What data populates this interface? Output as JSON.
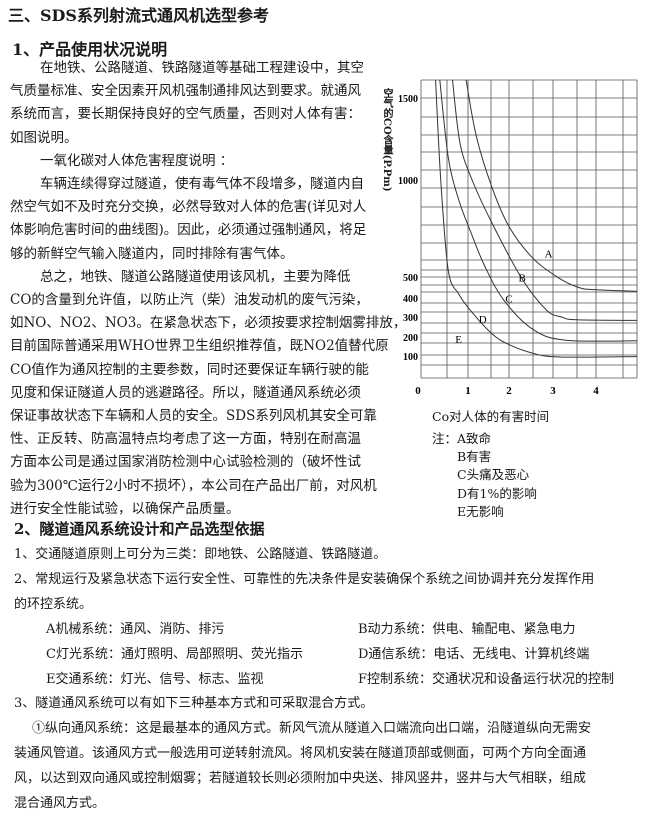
{
  "heading": "三、SDS系列射流式通风机选型参考",
  "section1": {
    "title": "1、产品使用状况说明",
    "lines": [
      "在地铁、公路隧道、铁路隧道等基础工程建设中，其空",
      "气质量标准、安全因素开风机强制通排风达到要求。就通风",
      "系统而言，要长期保持良好的空气质量，否则对人体有害：",
      "如图说明。",
      "一氧化碳对人体危害程度说明 ：",
      "车辆连续得穿过隧道，使有毒气体不段增多，隧道内自",
      "然空气如不及时充分交换，必然导致对人体的危害(详见对人",
      "体影响危害时间的曲线图)。因此，必须通过强制通风，将足",
      "够的新鲜空气输入隧道内，同时排除有害气体。",
      "总之，地铁、隧道公路隧道使用该风机，主要为降低",
      "CO的含量到允许值，以防止汽（柴）油发动机的废气污染，",
      "如NO、NO2、NO3。在紧急状态下，必须按要求控制烟雾排放，",
      "目前国际普通采用WHO世界卫生组织推荐值，既NO2值替代原",
      "CO值作为通风控制的主要参数，同时还要保证车辆行驶的能",
      "见度和保证隧道人员的逃避路径。所以，隧道通风系统必须",
      "保证事故状态下车辆和人员的安全。SDS系列风机其安全可靠",
      "性、正反转、防高温特点均考虑了这一方面，特别在耐高温",
      "方面本公司是通过国家消防检测中心试验检测的（破坏性试",
      "验为300℃运行2小时不损坏），本公司在产品出厂前，对风机",
      "进行安全性能试验，以确保产品质量。"
    ]
  },
  "chart_data": {
    "type": "line",
    "ylabel": "空气的CO含量(P.Pm)",
    "xlabel": "Co对人体的有害时间",
    "x_ticks": [
      "0",
      "1",
      "2",
      "3",
      "4"
    ],
    "y_ticks": [
      "100",
      "200",
      "300",
      "400",
      "500",
      "1000",
      "1500"
    ],
    "xlim": [
      0,
      4.9
    ],
    "ylim": [
      0,
      1610
    ],
    "grid": true,
    "series": [
      {
        "name": "A",
        "points": [
          [
            0.96,
            1610
          ],
          [
            1.2,
            1270
          ],
          [
            1.58,
            965
          ],
          [
            2.0,
            760
          ],
          [
            2.55,
            595
          ],
          [
            3.16,
            492
          ],
          [
            3.6,
            450
          ],
          [
            3.94,
            440
          ],
          [
            4.9,
            432
          ]
        ]
      },
      {
        "name": "B",
        "points": [
          [
            0.67,
            1610
          ],
          [
            0.83,
            1224
          ],
          [
            1.1,
            1000
          ],
          [
            1.55,
            793
          ],
          [
            2.27,
            500
          ],
          [
            2.85,
            337
          ],
          [
            3.2,
            300
          ],
          [
            3.55,
            286
          ],
          [
            4.9,
            283
          ]
        ]
      },
      {
        "name": "C",
        "points": [
          [
            0.4,
            1610
          ],
          [
            0.58,
            1138
          ],
          [
            0.8,
            900
          ],
          [
            1.05,
            741
          ],
          [
            1.4,
            560
          ],
          [
            1.87,
            390
          ],
          [
            2.55,
            237
          ],
          [
            3.3,
            183
          ],
          [
            4.9,
            180
          ]
        ]
      },
      {
        "name": "D",
        "points": [
          [
            0.31,
            1610
          ],
          [
            0.42,
            1000
          ],
          [
            0.58,
            534
          ],
          [
            0.8,
            420
          ],
          [
            1.05,
            337
          ],
          [
            1.58,
            217
          ],
          [
            2.0,
            160
          ],
          [
            2.55,
            114
          ],
          [
            3.16,
            95
          ],
          [
            4.9,
            97
          ]
        ]
      }
    ],
    "region_labels": [
      {
        "text": "A",
        "x": 2.9,
        "y": 620
      },
      {
        "text": "B",
        "x": 2.3,
        "y": 497
      },
      {
        "text": "C",
        "x": 2.0,
        "y": 397
      },
      {
        "text": "D",
        "x": 1.36,
        "y": 290
      },
      {
        "text": "E",
        "x": 0.8,
        "y": 190
      }
    ],
    "notes": [
      "注：A致命",
      "B有害",
      "C头痛及恶心",
      "D有1%的影响",
      "E无影响"
    ]
  },
  "section2": {
    "title": "2、隧道通风系统设计和产品选型依据",
    "item1": "1、交通隧道原则上可分为三类：即地铁、公路隧道、铁路隧道。",
    "item2a": "2、常规运行及紧急状态下运行安全性、可靠性的先决条件是安装确保个系统之间协调并充分发挥作用",
    "item2b": "的环控系统。",
    "systems": [
      "A机械系统：通风、消防、排污",
      "B动力系统：供电、输配电、紧急电力",
      "C灯光系统：通灯照明、局部照明、荧光指示",
      "D通信系统：电话、无线电、计算机终端",
      "E交通系统：灯光、信号、标志、监视",
      "F控制系统：交通状况和设备运行状况的控制"
    ],
    "item3": "3、隧道通风系统可以有如下三种基本方式和可采取混合方式。",
    "para": [
      "①纵向通风系统：这是最基本的通风方式。新风气流从隧道入口端流向出口端，沿隧道纵向无需安",
      "装通风管道。该通风方式一般选用可逆转射流风。将风机安装在隧道顶部或侧面，可两个方向全面通",
      "风，以达到双向通风或控制烟雾；若隧道较长则必须附加中央送、排风竖井，竖井与大气相联，组成",
      "混合通风方式。"
    ]
  }
}
